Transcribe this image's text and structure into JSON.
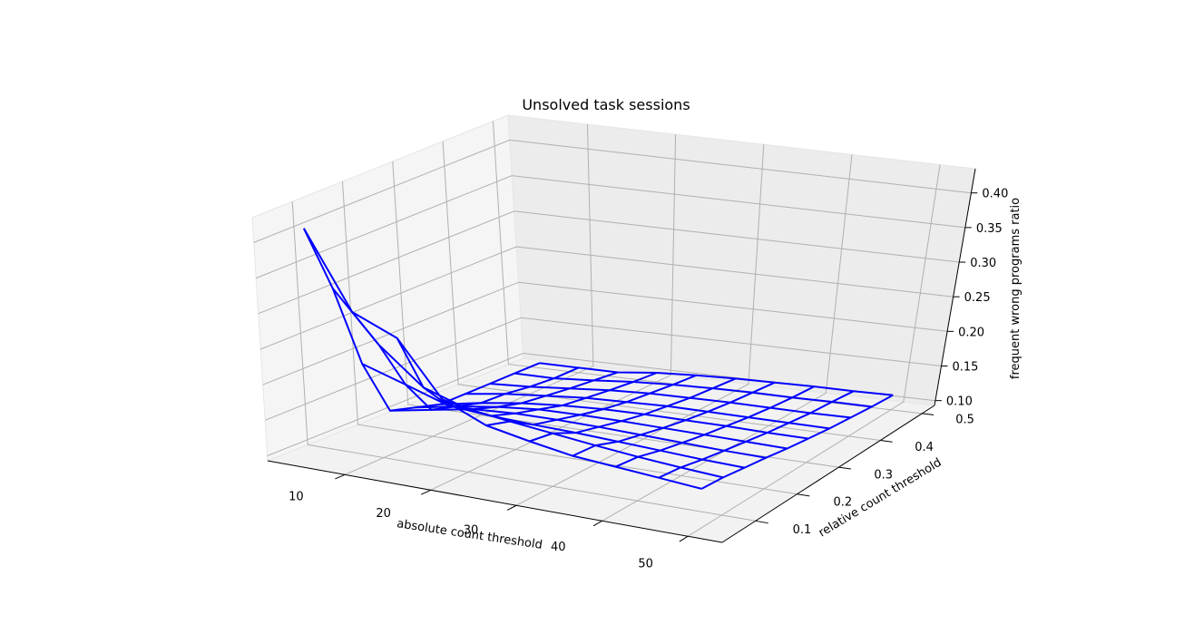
{
  "chart_data": {
    "type": "wireframe",
    "title": "Unsolved task sessions",
    "xlabel": "absolute count threshold",
    "ylabel": "relative count threshold",
    "zlabel": "frequent wrong programs ratio",
    "x_ticks": [
      10,
      20,
      30,
      40,
      50
    ],
    "y_ticks": [
      0.1,
      0.2,
      0.3,
      0.4,
      0.5
    ],
    "z_ticks": [
      0.1,
      0.15,
      0.2,
      0.25,
      0.3,
      0.35,
      0.4
    ],
    "z_tick_labels": [
      "0.10",
      "0.15",
      "0.20",
      "0.25",
      "0.30",
      "0.35",
      "0.40"
    ],
    "xlim": [
      1,
      54
    ],
    "ylim": [
      0.02,
      0.53
    ],
    "zlim": [
      0.093,
      0.435
    ],
    "x": [
      5,
      10,
      15,
      20,
      25,
      30,
      35,
      40,
      45,
      50
    ],
    "y": [
      0.05,
      0.1,
      0.15,
      0.2,
      0.25,
      0.3,
      0.35,
      0.4,
      0.45,
      0.5
    ],
    "z": [
      [
        0.418,
        0.31,
        0.283,
        0.208,
        0.182,
        0.17,
        0.16,
        0.155,
        0.15,
        0.145
      ],
      [
        0.32,
        0.25,
        0.2,
        0.18,
        0.172,
        0.165,
        0.158,
        0.152,
        0.147,
        0.143
      ],
      [
        0.2,
        0.18,
        0.16,
        0.155,
        0.152,
        0.15,
        0.147,
        0.144,
        0.141,
        0.139
      ],
      [
        0.12,
        0.13,
        0.14,
        0.143,
        0.143,
        0.142,
        0.14,
        0.138,
        0.136,
        0.135
      ],
      [
        0.11,
        0.12,
        0.128,
        0.133,
        0.134,
        0.134,
        0.133,
        0.132,
        0.131,
        0.13
      ],
      [
        0.1,
        0.11,
        0.118,
        0.123,
        0.126,
        0.127,
        0.127,
        0.127,
        0.126,
        0.126
      ],
      [
        0.1,
        0.108,
        0.113,
        0.118,
        0.12,
        0.122,
        0.122,
        0.122,
        0.122,
        0.122
      ],
      [
        0.1,
        0.103,
        0.108,
        0.113,
        0.116,
        0.117,
        0.118,
        0.118,
        0.118,
        0.119
      ],
      [
        0.1,
        0.1,
        0.104,
        0.109,
        0.112,
        0.114,
        0.115,
        0.115,
        0.116,
        0.116
      ],
      [
        0.1,
        0.1,
        0.1,
        0.106,
        0.109,
        0.111,
        0.112,
        0.113,
        0.113,
        0.114
      ]
    ],
    "wire_color": "#0000ff",
    "grid": true
  }
}
